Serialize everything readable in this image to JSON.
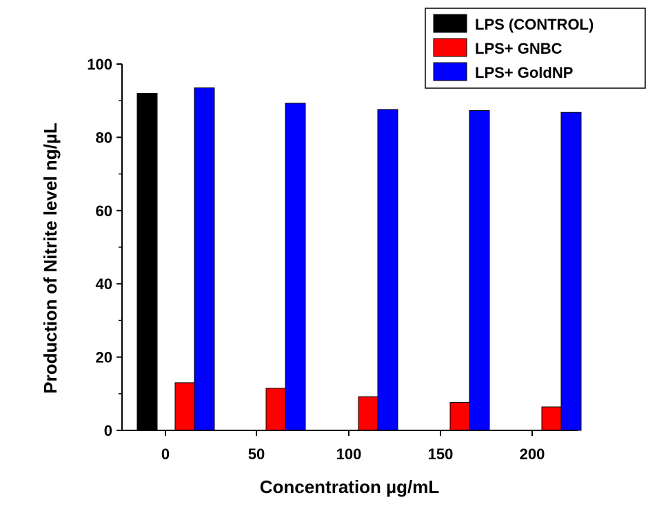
{
  "chart_data": {
    "type": "bar",
    "categories": [
      "0",
      "50",
      "100",
      "150",
      "200"
    ],
    "series": [
      {
        "name": "LPS (CONTROL)",
        "color": "#000000",
        "values": [
          92.0,
          null,
          null,
          null,
          null
        ]
      },
      {
        "name": "LPS+ GNBC",
        "color": "#ff0000",
        "values": [
          13.0,
          11.5,
          9.2,
          7.6,
          6.4
        ]
      },
      {
        "name": "LPS+ GoldNP",
        "color": "#0000ff",
        "values": [
          93.5,
          89.3,
          87.6,
          87.3,
          86.8
        ]
      }
    ],
    "xlabel": "Concentration µg/mL",
    "ylabel": "Production of Nitrite level ng/µL",
    "ylim": [
      0,
      100
    ],
    "yticks": [
      "0",
      "20",
      "40",
      "60",
      "80",
      "100"
    ],
    "grid": false,
    "legend_position": "top-right"
  }
}
